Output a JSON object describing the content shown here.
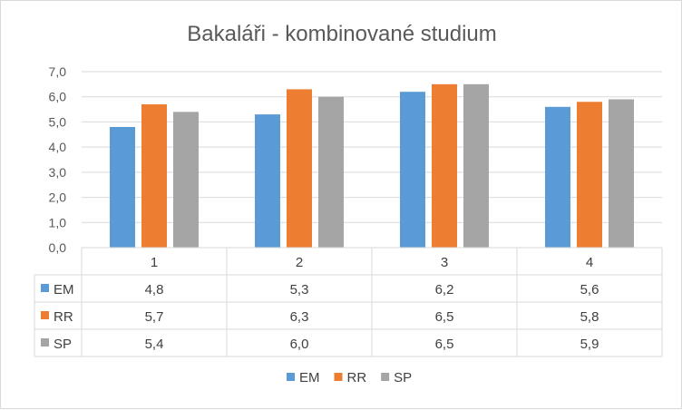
{
  "chart_data": {
    "type": "bar",
    "title": "Bakaláři - kombinované studium",
    "categories": [
      "1",
      "2",
      "3",
      "4"
    ],
    "ylim": [
      0,
      7
    ],
    "yticks": [
      "0,0",
      "1,0",
      "2,0",
      "3,0",
      "4,0",
      "5,0",
      "6,0",
      "7,0"
    ],
    "grid": true,
    "legend": "bottom",
    "data_table": true,
    "series": [
      {
        "name": "EM",
        "color": "#5b9bd5",
        "values": [
          4.8,
          5.3,
          6.2,
          5.6
        ],
        "labels": [
          "4,8",
          "5,3",
          "6,2",
          "5,6"
        ]
      },
      {
        "name": "RR",
        "color": "#ed7d31",
        "values": [
          5.7,
          6.3,
          6.5,
          5.8
        ],
        "labels": [
          "5,7",
          "6,3",
          "6,5",
          "5,8"
        ]
      },
      {
        "name": "SP",
        "color": "#a5a5a5",
        "values": [
          5.4,
          6.0,
          6.5,
          5.9
        ],
        "labels": [
          "5,4",
          "6,0",
          "6,5",
          "5,9"
        ]
      }
    ]
  }
}
